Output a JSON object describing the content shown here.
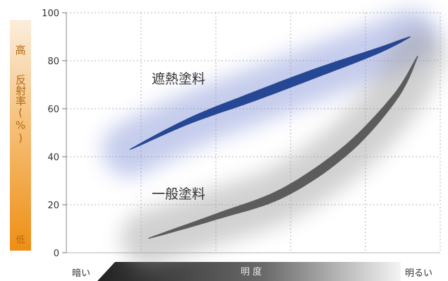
{
  "chart_data": {
    "type": "line",
    "ylim": [
      0,
      100
    ],
    "xlim": [
      0,
      100
    ],
    "ylabel": "反射率(%)",
    "y_high_label": "高",
    "y_low_label": "低",
    "xlabel": "明度",
    "x_low_label": "暗い",
    "x_high_label": "明るい",
    "y_ticks": [
      0,
      20,
      40,
      60,
      80,
      100
    ],
    "x_gridlines": [
      20,
      40,
      60,
      80
    ],
    "grid": true,
    "series": [
      {
        "name": "遮熱塗料",
        "color": "#1d3f8f",
        "x": [
          17,
          33,
          50,
          67,
          83,
          92
        ],
        "y": [
          43,
          55,
          65,
          75,
          84,
          90
        ]
      },
      {
        "name": "一般塗料",
        "color": "#555555",
        "x": [
          22,
          40,
          58,
          75,
          88,
          94
        ],
        "y": [
          6,
          15,
          25,
          43,
          65,
          82
        ]
      }
    ]
  }
}
